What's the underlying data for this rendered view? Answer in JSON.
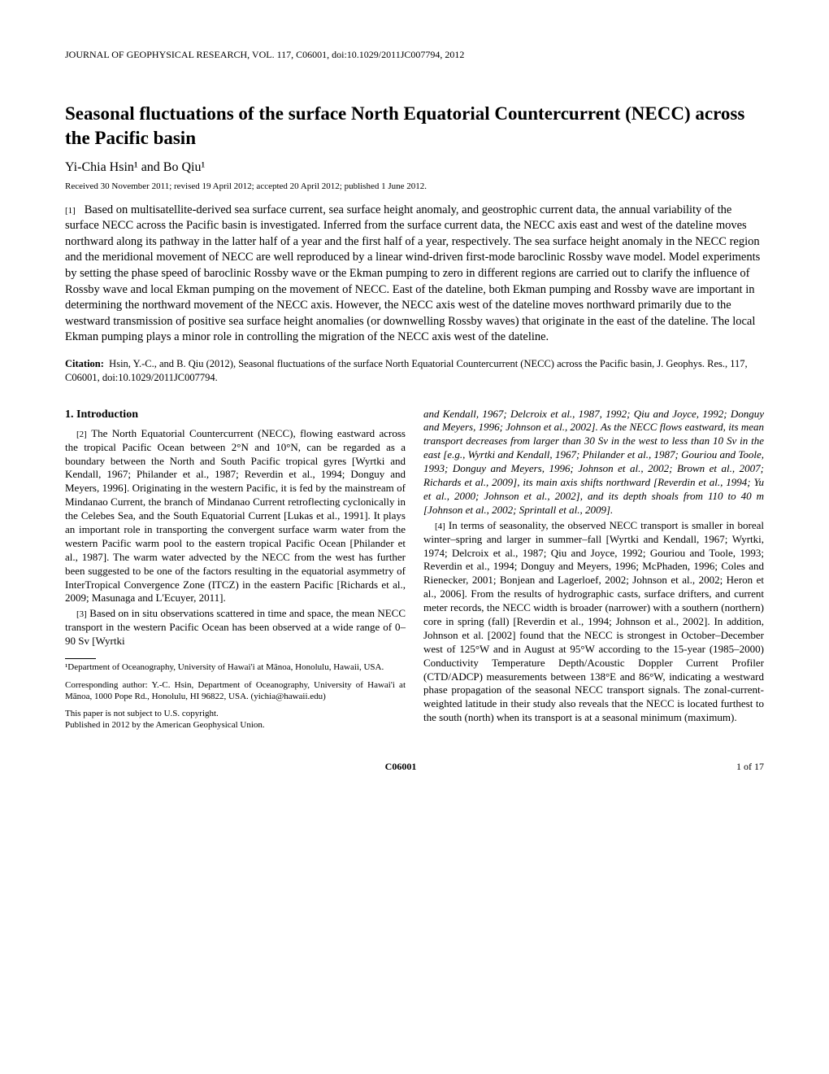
{
  "journal_header": "JOURNAL OF GEOPHYSICAL RESEARCH, VOL. 117, C06001, doi:10.1029/2011JC007794, 2012",
  "title": "Seasonal fluctuations of the surface North Equatorial Countercurrent (NECC) across the Pacific basin",
  "authors": "Yi-Chia Hsin¹ and Bo Qiu¹",
  "dates": "Received 30 November 2011; revised 19 April 2012; accepted 20 April 2012; published 1 June 2012.",
  "abstract_num": "[1]",
  "abstract": "Based on multisatellite-derived sea surface current, sea surface height anomaly, and geostrophic current data, the annual variability of the surface NECC across the Pacific basin is investigated. Inferred from the surface current data, the NECC axis east and west of the dateline moves northward along its pathway in the latter half of a year and the first half of a year, respectively. The sea surface height anomaly in the NECC region and the meridional movement of NECC are well reproduced by a linear wind-driven first-mode baroclinic Rossby wave model. Model experiments by setting the phase speed of baroclinic Rossby wave or the Ekman pumping to zero in different regions are carried out to clarify the influence of Rossby wave and local Ekman pumping on the movement of NECC. East of the dateline, both Ekman pumping and Rossby wave are important in determining the northward movement of the NECC axis. However, the NECC axis west of the dateline moves northward primarily due to the westward transmission of positive sea surface height anomalies (or downwelling Rossby waves) that originate in the east of the dateline. The local Ekman pumping plays a minor role in controlling the migration of the NECC axis west of the dateline.",
  "citation_label": "Citation:",
  "citation": "Hsin, Y.-C., and B. Qiu (2012), Seasonal fluctuations of the surface North Equatorial Countercurrent (NECC) across the Pacific basin, J. Geophys. Res., 117, C06001, doi:10.1029/2011JC007794.",
  "section1_heading": "1.   Introduction",
  "para2_num": "[2]",
  "para2": "The North Equatorial Countercurrent (NECC), flowing eastward across the tropical Pacific Ocean between 2°N and 10°N, can be regarded as a boundary between the North and South Pacific tropical gyres [Wyrtki and Kendall, 1967; Philander et al., 1987; Reverdin et al., 1994; Donguy and Meyers, 1996]. Originating in the western Pacific, it is fed by the mainstream of Mindanao Current, the branch of Mindanao Current retroflecting cyclonically in the Celebes Sea, and the South Equatorial Current [Lukas et al., 1991]. It plays an important role in transporting the convergent surface warm water from the western Pacific warm pool to the eastern tropical Pacific Ocean [Philander et al., 1987]. The warm water advected by the NECC from the west has further been suggested to be one of the factors resulting in the equatorial asymmetry of InterTropical Convergence Zone (ITCZ) in the eastern Pacific [Richards et al., 2009; Masunaga and L'Ecuyer, 2011].",
  "para3_num": "[3]",
  "para3": "Based on in situ observations scattered in time and space, the mean NECC transport in the western Pacific Ocean has been observed at a wide range of 0–90 Sv [Wyrtki",
  "para3_cont": "and Kendall, 1967; Delcroix et al., 1987, 1992; Qiu and Joyce, 1992; Donguy and Meyers, 1996; Johnson et al., 2002]. As the NECC flows eastward, its mean transport decreases from larger than 30 Sv in the west to less than 10 Sv in the east [e.g., Wyrtki and Kendall, 1967; Philander et al., 1987; Gouriou and Toole, 1993; Donguy and Meyers, 1996; Johnson et al., 2002; Brown et al., 2007; Richards et al., 2009], its main axis shifts northward [Reverdin et al., 1994; Yu et al., 2000; Johnson et al., 2002], and its depth shoals from 110 to 40 m [Johnson et al., 2002; Sprintall et al., 2009].",
  "para4_num": "[4]",
  "para4": "In terms of seasonality, the observed NECC transport is smaller in boreal winter–spring and larger in summer–fall [Wyrtki and Kendall, 1967; Wyrtki, 1974; Delcroix et al., 1987; Qiu and Joyce, 1992; Gouriou and Toole, 1993; Reverdin et al., 1994; Donguy and Meyers, 1996; McPhaden, 1996; Coles and Rienecker, 2001; Bonjean and Lagerloef, 2002; Johnson et al., 2002; Heron et al., 2006]. From the results of hydrographic casts, surface drifters, and current meter records, the NECC width is broader (narrower) with a southern (northern) core in spring (fall) [Reverdin et al., 1994; Johnson et al., 2002]. In addition, Johnson et al. [2002] found that the NECC is strongest in October–December west of 125°W and in August at 95°W according to the 15-year (1985–2000) Conductivity Temperature Depth/Acoustic Doppler Current Profiler (CTD/ADCP) measurements between 138°E and 86°W, indicating a westward phase propagation of the seasonal NECC transport signals. The zonal-current-weighted latitude in their study also reveals that the NECC is located furthest to the south (north) when its transport is at a seasonal minimum (maximum).",
  "footnote1": "¹Department of Oceanography, University of Hawai'i at Mānoa, Honolulu, Hawaii, USA.",
  "footnote2": "Corresponding author: Y.-C. Hsin, Department of Oceanography, University of Hawai'i at Mānoa, 1000 Pope Rd., Honolulu, HI 96822, USA. (yichia@hawaii.edu)",
  "footnote3": "This paper is not subject to U.S. copyright.",
  "footnote4": "Published in 2012 by the American Geophysical Union.",
  "footer_center": "C06001",
  "footer_right": "1 of 17"
}
